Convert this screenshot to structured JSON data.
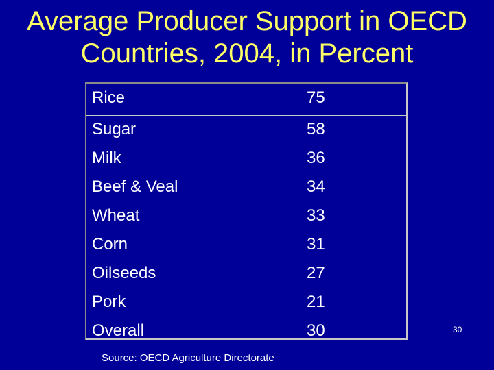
{
  "slide": {
    "title_line1": "Average Producer Support in OECD",
    "title_line2": "Countries, 2004, in Percent",
    "source": "Source: OECD Agriculture Directorate",
    "page_number": "30"
  },
  "table": {
    "rows": [
      {
        "label": "Rice",
        "value": "75"
      },
      {
        "label": "Sugar",
        "value": "58"
      },
      {
        "label": "Milk",
        "value": "36"
      },
      {
        "label": "Beef & Veal",
        "value": "34"
      },
      {
        "label": "Wheat",
        "value": "33"
      },
      {
        "label": "Corn",
        "value": "31"
      },
      {
        "label": "Oilseeds",
        "value": "27"
      },
      {
        "label": "Pork",
        "value": "21"
      },
      {
        "label": "Overall",
        "value": "30"
      }
    ]
  },
  "colors": {
    "background": "#000099",
    "title": "#ffff66",
    "text": "#ffffff",
    "border": "#c8c8c8"
  }
}
